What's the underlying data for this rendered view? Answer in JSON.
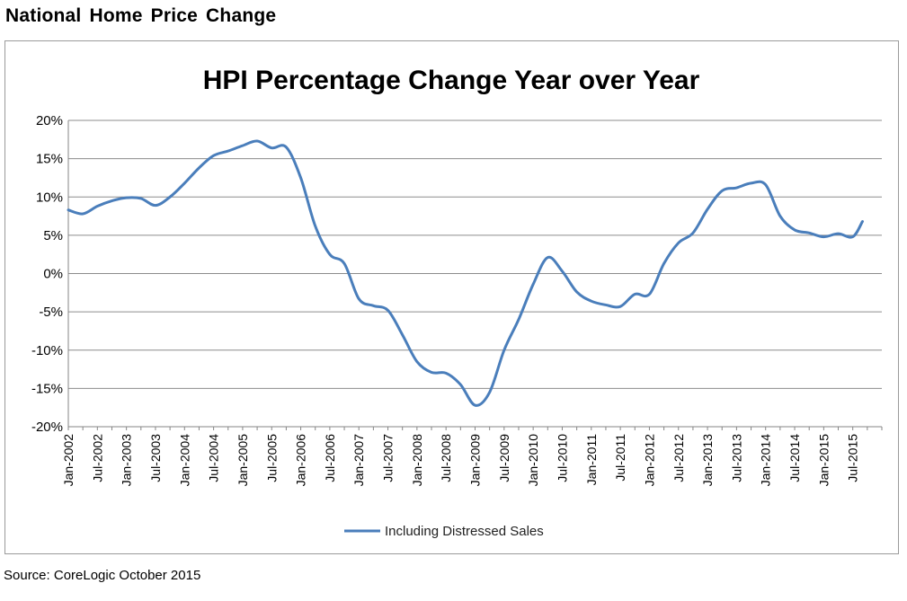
{
  "page_title": "National Home Price Change",
  "source": "Source: CoreLogic October 2015",
  "colors": {
    "series_line": "#4a7ebb",
    "grid": "#8c8c8c",
    "frame": "#9a9a9a"
  },
  "chart_data": {
    "type": "line",
    "title": "HPI Percentage Change Year over Year",
    "xlabel": "",
    "ylabel": "",
    "ylim": [
      -20,
      20
    ],
    "y_ticks": [
      "20%",
      "15%",
      "10%",
      "5%",
      "0%",
      "-5%",
      "-10%",
      "-15%",
      "-20%"
    ],
    "x_tick_labels": [
      "Jan-2002",
      "Jul-2002",
      "Jan-2003",
      "Jul-2003",
      "Jan-2004",
      "Jul-2004",
      "Jan-2005",
      "Jul-2005",
      "Jan-2006",
      "Jul-2006",
      "Jan-2007",
      "Jul-2007",
      "Jan-2008",
      "Jul-2008",
      "Jan-2009",
      "Jul-2009",
      "Jan-2010",
      "Jul-2010",
      "Jan-2011",
      "Jul-2011",
      "Jan-2012",
      "Jul-2012",
      "Jan-2013",
      "Jul-2013",
      "Jan-2014",
      "Jul-2014",
      "Jan-2015",
      "Jul-2015"
    ],
    "grid": true,
    "legend_position": "bottom",
    "series": [
      {
        "name": "Including Distressed Sales",
        "x": [
          "Jan-2002",
          "Apr-2002",
          "Jul-2002",
          "Oct-2002",
          "Jan-2003",
          "Apr-2003",
          "Jul-2003",
          "Oct-2003",
          "Jan-2004",
          "Apr-2004",
          "Jul-2004",
          "Oct-2004",
          "Jan-2005",
          "Apr-2005",
          "Jul-2005",
          "Oct-2005",
          "Jan-2006",
          "Apr-2006",
          "Jul-2006",
          "Oct-2006",
          "Jan-2007",
          "Apr-2007",
          "Jul-2007",
          "Oct-2007",
          "Jan-2008",
          "Apr-2008",
          "Jul-2008",
          "Oct-2008",
          "Jan-2009",
          "Apr-2009",
          "Jul-2009",
          "Oct-2009",
          "Jan-2010",
          "Apr-2010",
          "Jul-2010",
          "Oct-2010",
          "Jan-2011",
          "Apr-2011",
          "Jul-2011",
          "Oct-2011",
          "Jan-2012",
          "Apr-2012",
          "Jul-2012",
          "Oct-2012",
          "Jan-2013",
          "Apr-2013",
          "Jul-2013",
          "Oct-2013",
          "Jan-2014",
          "Apr-2014",
          "Jul-2014",
          "Oct-2014",
          "Jan-2015",
          "Apr-2015",
          "Jul-2015",
          "Sep-2015"
        ],
        "values": [
          8.3,
          7.8,
          8.8,
          9.5,
          9.9,
          9.8,
          8.9,
          10.0,
          11.8,
          13.8,
          15.4,
          16.0,
          16.7,
          17.3,
          16.4,
          16.5,
          12.5,
          6.2,
          2.5,
          1.3,
          -3.3,
          -4.2,
          -4.8,
          -8.0,
          -11.5,
          -12.9,
          -13.0,
          -14.5,
          -17.2,
          -15.5,
          -10.0,
          -6.0,
          -1.4,
          2.1,
          0.3,
          -2.4,
          -3.6,
          -4.1,
          -4.3,
          -2.7,
          -2.7,
          1.3,
          4.0,
          5.3,
          8.4,
          10.8,
          11.2,
          11.8,
          11.6,
          7.5,
          5.7,
          5.3,
          4.8,
          5.2,
          4.8,
          6.8
        ]
      }
    ]
  }
}
